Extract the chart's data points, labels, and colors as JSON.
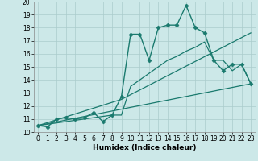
{
  "xlabel": "Humidex (Indice chaleur)",
  "xlim": [
    -0.5,
    23.5
  ],
  "ylim": [
    10,
    20
  ],
  "yticks": [
    10,
    11,
    12,
    13,
    14,
    15,
    16,
    17,
    18,
    19,
    20
  ],
  "xticks": [
    0,
    1,
    2,
    3,
    4,
    5,
    6,
    7,
    8,
    9,
    10,
    11,
    12,
    13,
    14,
    15,
    16,
    17,
    18,
    19,
    20,
    21,
    22,
    23
  ],
  "bg_color": "#cce8e8",
  "grid_color": "#aacccc",
  "line_color": "#1a7a6e",
  "series": [
    {
      "x": [
        0,
        1,
        2,
        3,
        4,
        5,
        6,
        7,
        8,
        9,
        10,
        11,
        12,
        13,
        14,
        15,
        16,
        17,
        18,
        19,
        20,
        21,
        22,
        23
      ],
      "y": [
        10.5,
        10.4,
        11.0,
        11.1,
        11.0,
        11.1,
        11.5,
        10.8,
        11.3,
        12.7,
        17.5,
        17.5,
        15.5,
        18.0,
        18.2,
        18.2,
        19.7,
        18.0,
        17.6,
        15.5,
        14.7,
        15.2,
        15.2,
        13.7
      ],
      "marker": "D",
      "markersize": 2.5,
      "linewidth": 1.0
    },
    {
      "x": [
        0,
        9,
        23
      ],
      "y": [
        10.5,
        12.5,
        17.6
      ],
      "marker": null,
      "markersize": 0,
      "linewidth": 0.9
    },
    {
      "x": [
        0,
        8,
        9,
        10,
        11,
        12,
        13,
        14,
        15,
        16,
        17,
        18,
        19,
        20,
        21,
        22,
        23
      ],
      "y": [
        10.5,
        11.3,
        11.3,
        13.5,
        14.0,
        14.5,
        15.0,
        15.5,
        15.8,
        16.2,
        16.5,
        16.9,
        15.5,
        15.5,
        14.7,
        15.2,
        13.7
      ],
      "marker": null,
      "markersize": 0,
      "linewidth": 0.9
    },
    {
      "x": [
        0,
        23
      ],
      "y": [
        10.5,
        13.7
      ],
      "marker": null,
      "markersize": 0,
      "linewidth": 0.9
    }
  ]
}
